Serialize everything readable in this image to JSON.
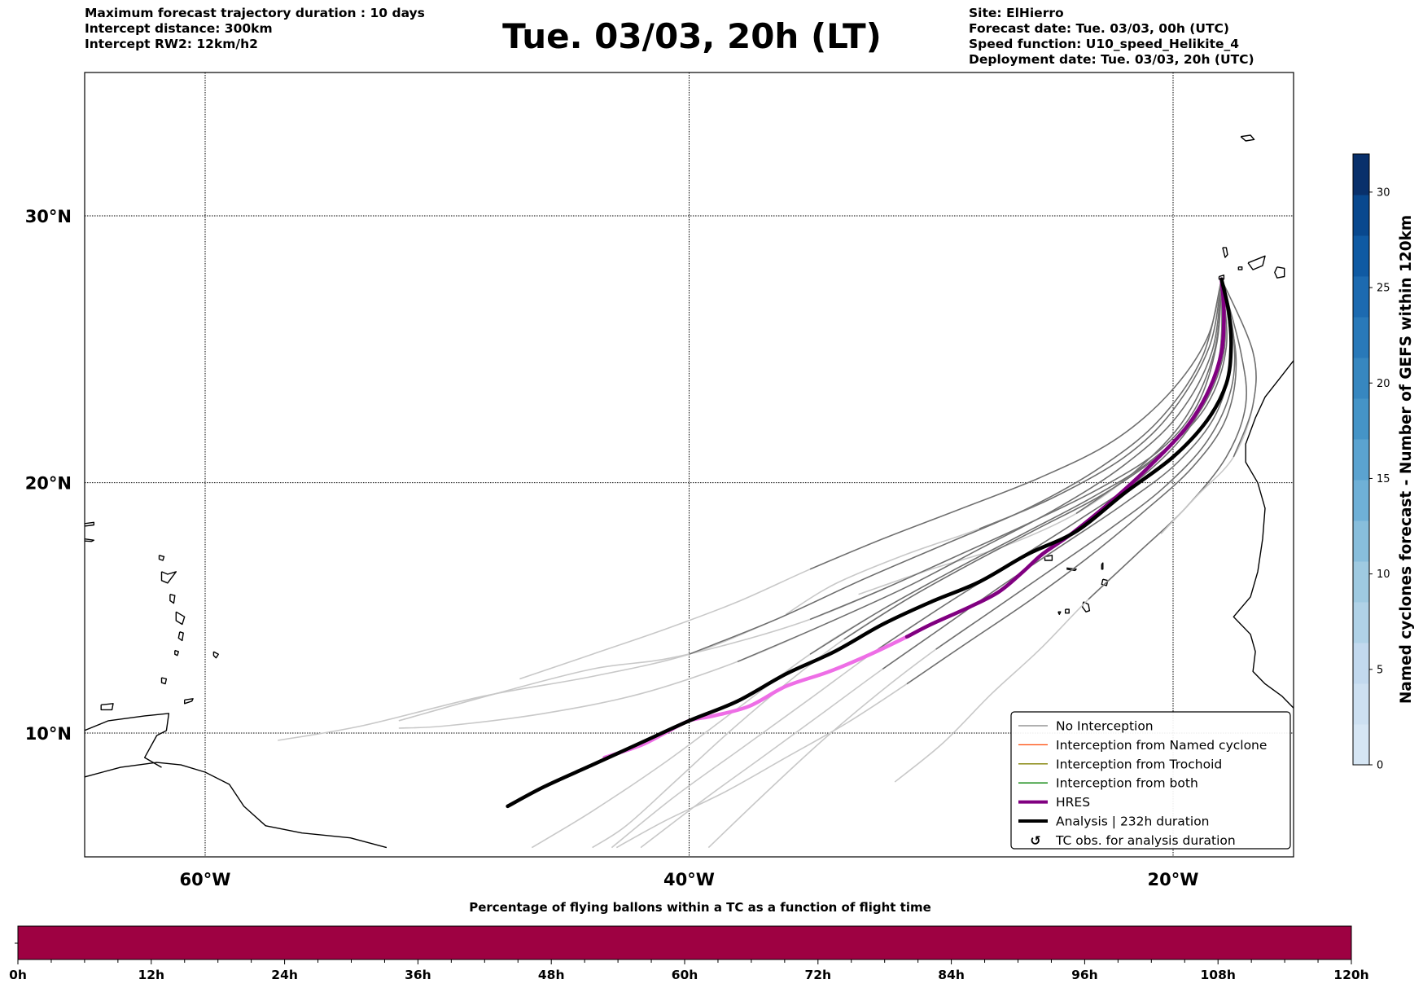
{
  "header": {
    "left_lines": [
      "Maximum forecast trajectory duration : 10 days",
      "Intercept distance: 300km",
      "Intercept RW2: 12km/h2"
    ],
    "title": "Tue. 03/03, 20h (LT)",
    "right_lines": [
      "Site: ElHierro",
      "Forecast date: Tue. 03/03, 00h (UTC)",
      "Speed function: U10_speed_Helikite_4",
      "Deployment date: Tue. 03/03, 20h (UTC)"
    ]
  },
  "map": {
    "lon_range": [
      -65,
      -15
    ],
    "lat_range": [
      5.3,
      35.3
    ],
    "lon_ticks": [
      {
        "value": -60,
        "label": "60°W"
      },
      {
        "value": -40,
        "label": "40°W"
      },
      {
        "value": -20,
        "label": "20°W"
      }
    ],
    "lat_ticks": [
      {
        "value": 30,
        "label": "30°N"
      },
      {
        "value": 20,
        "label": "20°N"
      },
      {
        "value": 10,
        "label": "10°N"
      }
    ],
    "gridlines": "dotted",
    "launch_site": {
      "name": "ElHierro",
      "lon": -18.0,
      "lat": 27.7
    }
  },
  "legend": {
    "position": "lower-right",
    "items": [
      {
        "label": "No Interception",
        "color": "#808080",
        "style": "thin"
      },
      {
        "label": "Interception from Named cyclone",
        "color": "#ff4500",
        "style": "thin"
      },
      {
        "label": "Interception from Trochoid",
        "color": "#808000",
        "style": "thin"
      },
      {
        "label": "Interception from both",
        "color": "#008000",
        "style": "thin"
      },
      {
        "label": "HRES",
        "color": "#800080",
        "style": "thick"
      },
      {
        "label": "Analysis | 232h duration",
        "color": "#000000",
        "style": "thick"
      },
      {
        "label": "TC obs. for analysis duration",
        "color": "#000000",
        "style": "symbol",
        "symbol": "↺"
      }
    ]
  },
  "colorbar": {
    "title": "Named cyclones forecast - Number of GEFS within 120km",
    "min": 0,
    "max": 32,
    "ticks": [
      0,
      5,
      10,
      15,
      20,
      25,
      30
    ],
    "colors": [
      "#d6e6f4",
      "#cde0f1",
      "#c2d9ee",
      "#b0d2e7",
      "#9fcae1",
      "#88bedc",
      "#6fb0d7",
      "#5ba3d0",
      "#4594c7",
      "#3787c0",
      "#2979b9",
      "#1c6ab0",
      "#0f5aa3",
      "#08488e",
      "#08306b"
    ]
  },
  "bottom_bar": {
    "title": "Percentage of flying ballons within a TC as a function of flight time",
    "color": "#9e0142",
    "x_range": [
      0,
      120
    ],
    "ticks": [
      {
        "value": 0,
        "label": "0h"
      },
      {
        "value": 12,
        "label": "12h"
      },
      {
        "value": 24,
        "label": "24h"
      },
      {
        "value": 36,
        "label": "36h"
      },
      {
        "value": 48,
        "label": "48h"
      },
      {
        "value": 60,
        "label": "60h"
      },
      {
        "value": 72,
        "label": "72h"
      },
      {
        "value": 84,
        "label": "84h"
      },
      {
        "value": 96,
        "label": "96h"
      },
      {
        "value": 108,
        "label": "108h"
      },
      {
        "value": 120,
        "label": "120h"
      }
    ],
    "minor_tick_step": 3,
    "value_percent_all_times": 0
  },
  "chart_data": {
    "type": "line",
    "title": "Tue. 03/03, 20h (LT)",
    "xlabel": "Longitude",
    "ylabel": "Latitude",
    "xlim": [
      -65,
      -15
    ],
    "ylim": [
      5.3,
      35.3
    ],
    "grid": true,
    "legend_placement": "lower-right",
    "series": [
      {
        "name": "Analysis | 232h duration",
        "color": "#000000",
        "points": [
          [
            -18.0,
            27.7
          ],
          [
            -17.7,
            26.5
          ],
          [
            -17.6,
            25.2
          ],
          [
            -17.8,
            23.8
          ],
          [
            -18.6,
            22.4
          ],
          [
            -20,
            21.0
          ],
          [
            -22,
            19.6
          ],
          [
            -24,
            18.1
          ],
          [
            -26,
            17.2
          ],
          [
            -28,
            16.1
          ],
          [
            -30,
            15.3
          ],
          [
            -32,
            14.4
          ],
          [
            -34,
            13.3
          ],
          [
            -36,
            12.4
          ],
          [
            -38,
            11.3
          ],
          [
            -40,
            10.5
          ],
          [
            -42,
            9.6
          ],
          [
            -44,
            8.7
          ],
          [
            -46,
            7.8
          ],
          [
            -47.5,
            7.0
          ]
        ]
      },
      {
        "name": "HRES",
        "color": "#800080",
        "color_late": "#ee6ee6",
        "points": [
          [
            -18.0,
            27.7
          ],
          [
            -17.9,
            26.5
          ],
          [
            -18.0,
            25.0
          ],
          [
            -18.5,
            23.6
          ],
          [
            -19.4,
            22.2
          ],
          [
            -20.8,
            20.8
          ],
          [
            -22.4,
            19.4
          ],
          [
            -24.2,
            18.0
          ],
          [
            -25.4,
            17.2
          ],
          [
            -26.2,
            16.5
          ],
          [
            -27.2,
            15.7
          ],
          [
            -28.4,
            15.1
          ],
          [
            -30,
            14.4
          ],
          [
            -31,
            13.9
          ],
          [
            -32.5,
            13.2
          ],
          [
            -34.2,
            12.5
          ],
          [
            -36,
            11.9
          ],
          [
            -37.5,
            11.1
          ],
          [
            -39,
            10.7
          ],
          [
            -40,
            10.5
          ],
          [
            -41,
            10.0
          ],
          [
            -42,
            9.5
          ],
          [
            -43.5,
            9.0
          ]
        ]
      }
    ],
    "ensemble_members_no_interception": [
      [
        [
          -18.0,
          27.7
        ],
        [
          -18.3,
          25.0
        ],
        [
          -19.5,
          22.5
        ],
        [
          -21.5,
          20.5
        ],
        [
          -24,
          18.8
        ],
        [
          -27,
          17.5
        ],
        [
          -30,
          16.6
        ],
        [
          -33,
          15.6
        ]
      ],
      [
        [
          -18.0,
          27.7
        ],
        [
          -18.5,
          25.2
        ],
        [
          -20,
          22.8
        ],
        [
          -22,
          21.0
        ],
        [
          -25,
          19.4
        ],
        [
          -28,
          18.2
        ],
        [
          -31,
          17.2
        ],
        [
          -34,
          16.0
        ],
        [
          -36,
          14.8
        ]
      ],
      [
        [
          -18.0,
          27.7
        ],
        [
          -18.6,
          25.5
        ],
        [
          -20.2,
          23.4
        ],
        [
          -22.5,
          21.6
        ],
        [
          -25.5,
          20.2
        ],
        [
          -29,
          18.9
        ],
        [
          -32,
          17.8
        ],
        [
          -35,
          16.6
        ],
        [
          -38,
          15.3
        ],
        [
          -41,
          14.2
        ],
        [
          -44,
          13.2
        ],
        [
          -47,
          12.2
        ]
      ],
      [
        [
          -18.0,
          27.7
        ],
        [
          -18.2,
          25.3
        ],
        [
          -19,
          23
        ],
        [
          -20.5,
          21.3
        ],
        [
          -23,
          19.8
        ],
        [
          -26,
          18.4
        ],
        [
          -29,
          17.1
        ],
        [
          -32,
          15.8
        ],
        [
          -35,
          14.6
        ],
        [
          -38,
          13.7
        ],
        [
          -41,
          13.0
        ],
        [
          -44,
          12.6
        ],
        [
          -48,
          11.6
        ],
        [
          -52,
          10.5
        ]
      ],
      [
        [
          -18.0,
          27.7
        ],
        [
          -17.2,
          25.0
        ],
        [
          -17.0,
          23.0
        ],
        [
          -17.8,
          21.0
        ],
        [
          -19.5,
          19.0
        ],
        [
          -21.5,
          17.2
        ],
        [
          -23.5,
          15.4
        ],
        [
          -25.5,
          13.4
        ],
        [
          -27.5,
          11.6
        ],
        [
          -29.5,
          9.6
        ],
        [
          -31.5,
          8.0
        ]
      ],
      [
        [
          -18.0,
          27.7
        ],
        [
          -16.7,
          25.0
        ],
        [
          -16.7,
          23.0
        ],
        [
          -17.5,
          21.0
        ],
        [
          -19,
          19.5
        ],
        [
          -20.5,
          18.0
        ]
      ],
      [
        [
          -18.0,
          27.7
        ],
        [
          -17.4,
          24.8
        ],
        [
          -17.8,
          22.5
        ],
        [
          -19.2,
          20.6
        ],
        [
          -21.3,
          18.8
        ],
        [
          -23.6,
          17.0
        ],
        [
          -26,
          15.3
        ],
        [
          -28.6,
          13.6
        ],
        [
          -31,
          12.0
        ],
        [
          -33.5,
          10.4
        ],
        [
          -36,
          9.0
        ],
        [
          -38.5,
          7.6
        ],
        [
          -41,
          6.4
        ],
        [
          -43,
          5.3
        ]
      ],
      [
        [
          -18.0,
          27.7
        ],
        [
          -17.6,
          25.0
        ],
        [
          -18.2,
          22.7
        ],
        [
          -19.8,
          20.8
        ],
        [
          -22,
          19.2
        ],
        [
          -24.5,
          17.6
        ],
        [
          -27,
          16.0
        ],
        [
          -29.5,
          14.3
        ],
        [
          -32,
          12.6
        ],
        [
          -34.5,
          10.8
        ],
        [
          -37,
          9.0
        ],
        [
          -39.5,
          7.2
        ],
        [
          -42,
          5.3
        ]
      ],
      [
        [
          -18.0,
          27.7
        ],
        [
          -17.8,
          25.2
        ],
        [
          -18.6,
          23.0
        ],
        [
          -20.4,
          21.2
        ],
        [
          -22.8,
          19.6
        ],
        [
          -25.6,
          18.2
        ],
        [
          -28.4,
          16.8
        ],
        [
          -31,
          15.4
        ],
        [
          -33.6,
          13.8
        ],
        [
          -36,
          12.0
        ],
        [
          -38.4,
          10.0
        ],
        [
          -40.6,
          8.0
        ],
        [
          -42.6,
          6.2
        ],
        [
          -44,
          5.3
        ]
      ],
      [
        [
          -18.0,
          27.7
        ],
        [
          -17.9,
          25.0
        ],
        [
          -19.0,
          22.6
        ],
        [
          -21,
          20.8
        ],
        [
          -23.4,
          19.4
        ],
        [
          -26.2,
          18.0
        ],
        [
          -29,
          16.6
        ],
        [
          -32,
          15.0
        ],
        [
          -35,
          13.2
        ],
        [
          -38,
          11.0
        ],
        [
          -41,
          8.8
        ],
        [
          -44,
          6.8
        ],
        [
          -46.5,
          5.3
        ]
      ],
      [
        [
          -18.0,
          27.7
        ],
        [
          -18.1,
          24.8
        ],
        [
          -19.2,
          22.3
        ],
        [
          -21.2,
          20.3
        ],
        [
          -23.8,
          18.6
        ],
        [
          -26.6,
          16.9
        ],
        [
          -29.4,
          15.2
        ],
        [
          -32.2,
          13.4
        ],
        [
          -35,
          11.4
        ],
        [
          -37.8,
          9.4
        ],
        [
          -40.6,
          7.4
        ],
        [
          -43.2,
          5.3
        ]
      ],
      [
        [
          -18.0,
          27.7
        ],
        [
          -17.5,
          25.6
        ],
        [
          -17.6,
          23.6
        ],
        [
          -18.6,
          21.6
        ],
        [
          -20.4,
          19.8
        ],
        [
          -22.6,
          18.2
        ],
        [
          -25,
          16.6
        ],
        [
          -27.4,
          15.0
        ],
        [
          -29.8,
          13.4
        ],
        [
          -32.2,
          11.6
        ],
        [
          -34.6,
          9.6
        ],
        [
          -37,
          7.4
        ],
        [
          -39.2,
          5.3
        ]
      ],
      [
        [
          -18.0,
          27.7
        ],
        [
          -18.8,
          24.8
        ],
        [
          -20.6,
          22.4
        ],
        [
          -23,
          20.6
        ],
        [
          -26,
          19.0
        ],
        [
          -29.4,
          17.6
        ],
        [
          -32.8,
          16.2
        ],
        [
          -36.4,
          14.6
        ],
        [
          -40,
          13.2
        ],
        [
          -44,
          12.3
        ],
        [
          -48.5,
          11.5
        ],
        [
          -53.5,
          10.3
        ],
        [
          -57,
          9.7
        ]
      ],
      [
        [
          -18.0,
          27.7
        ],
        [
          -18.4,
          25.0
        ],
        [
          -19.8,
          22.6
        ],
        [
          -22,
          20.7
        ],
        [
          -24.8,
          19.0
        ],
        [
          -28,
          17.4
        ],
        [
          -31,
          15.9
        ],
        [
          -34.4,
          14.4
        ],
        [
          -38,
          12.9
        ],
        [
          -42,
          11.6
        ],
        [
          -46,
          10.8
        ],
        [
          -50,
          10.3
        ],
        [
          -52,
          10.2
        ]
      ]
    ]
  }
}
